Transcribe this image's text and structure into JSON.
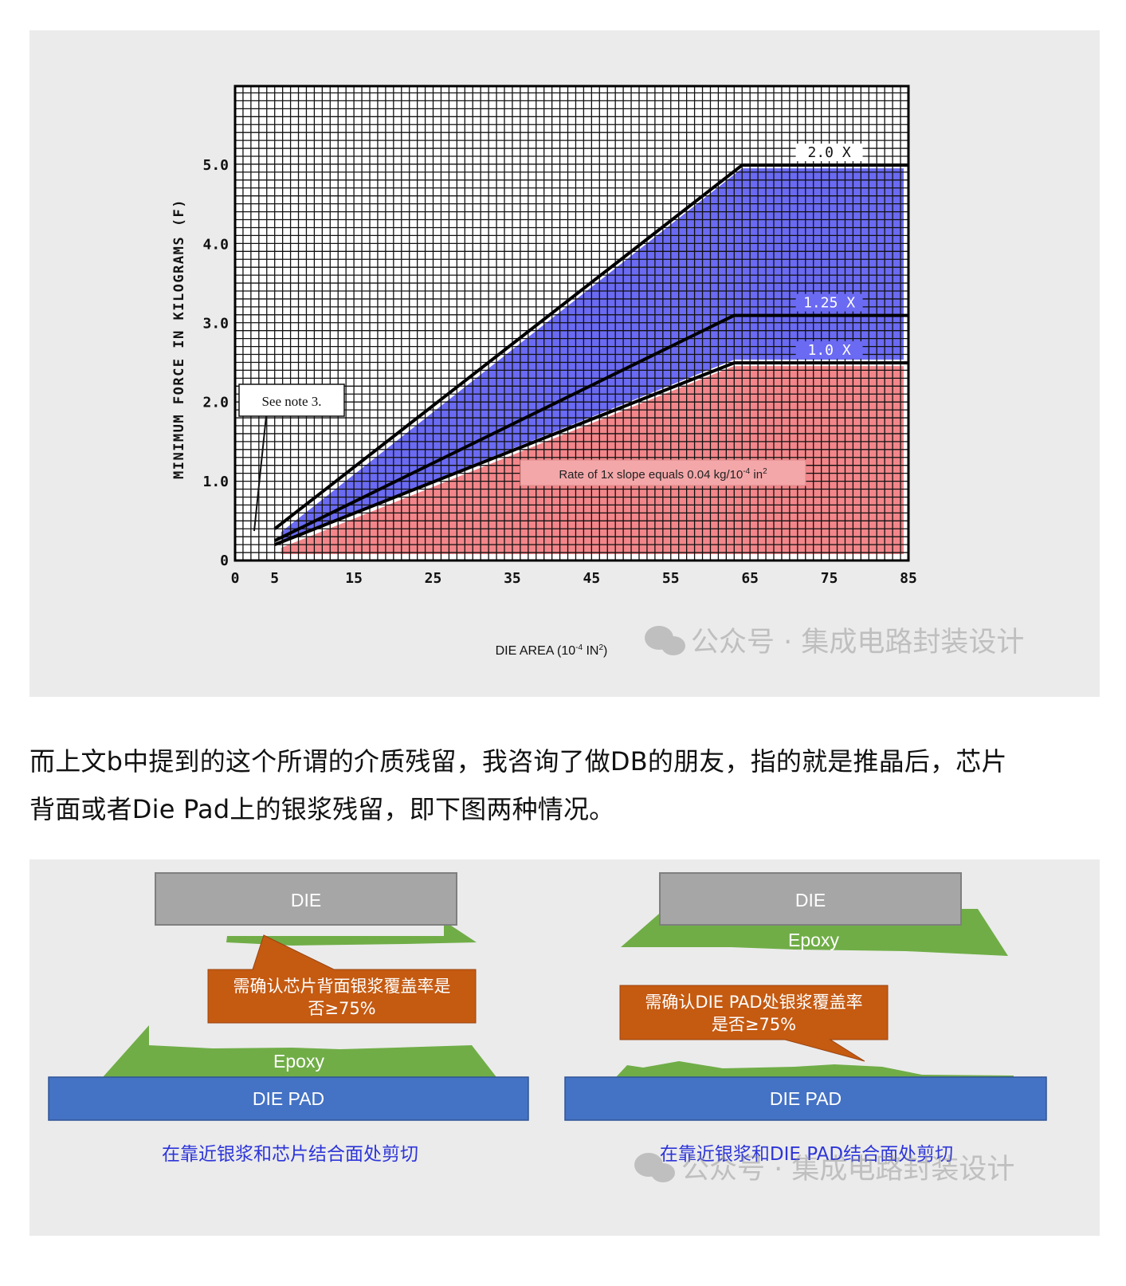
{
  "chart": {
    "title": "",
    "ylabel": "MINIMUM FORCE IN KILOGRAMS (F)",
    "xlabel_base": "DIE AREA (10",
    "xlabel_exp": "-4",
    "xlabel_unit": " IN",
    "xlabel_unit_exp": "2",
    "xlabel_close": ")",
    "note": "See note 3.",
    "rate_text_a": "Rate of 1x slope equals 0.04 kg/10",
    "rate_exp1": "-4",
    "rate_text_b": " in",
    "rate_exp2": "2",
    "watermark": "公众号 · 集成电路封装设计"
  },
  "chart_data": {
    "type": "line",
    "x_ticks": [
      "0",
      "5",
      "15",
      "25",
      "35",
      "45",
      "55",
      "65",
      "75",
      "85"
    ],
    "y_ticks": [
      "0",
      "1.0",
      "2.0",
      "3.0",
      "4.0",
      "5.0"
    ],
    "xlim": [
      0,
      85
    ],
    "ylim": [
      0,
      6
    ],
    "grid": true,
    "series": [
      {
        "name": "2.0 X",
        "x": [
          5,
          64,
          85
        ],
        "y": [
          0.4,
          5.0,
          5.0
        ],
        "color": "#000000"
      },
      {
        "name": "1.25 X",
        "x": [
          5,
          63,
          85
        ],
        "y": [
          0.25,
          3.1,
          3.1
        ],
        "color": "#000000"
      },
      {
        "name": "1.0 X",
        "x": [
          5,
          63,
          85
        ],
        "y": [
          0.2,
          2.5,
          2.5
        ],
        "color": "#000000"
      }
    ],
    "fills": [
      {
        "between": [
          "1.0 X",
          "2.0 X"
        ],
        "color": "#6a6af2"
      },
      {
        "below": "1.0 X",
        "color": "#f2868a"
      }
    ]
  },
  "text": {
    "line1": "而上文b中提到的这个所谓的介质残留，我咨询了做DB的朋友，指的就是推晶后，芯片",
    "line2": "背面或者Die Pad上的银浆残留，即下图两种情况。"
  },
  "diagram": {
    "left": {
      "die": "DIE",
      "epoxy": "Epoxy",
      "die_pad": "DIE PAD",
      "callout_l1": "需确认芯片背面银浆覆盖率是",
      "callout_l2": "否≥75%",
      "caption": "在靠近银浆和芯片结合面处剪切"
    },
    "right": {
      "die": "DIE",
      "epoxy": "Epoxy",
      "die_pad": "DIE PAD",
      "callout_l1": "需确认DIE PAD处银浆覆盖率",
      "callout_l2": "是否≥75%",
      "caption": "在靠近银浆和DIE PAD结合面处剪切"
    },
    "watermark": "公众号 · 集成电路封装设计"
  },
  "colors": {
    "panel_bg": "#ebebeb",
    "upper_fill": "#6a6af2",
    "lower_fill": "#f2868a",
    "die": "#a6a6a6",
    "epoxy": "#70ad47",
    "die_pad": "#4472c4",
    "callout": "#c55a11",
    "caption": "#2d35d8"
  }
}
